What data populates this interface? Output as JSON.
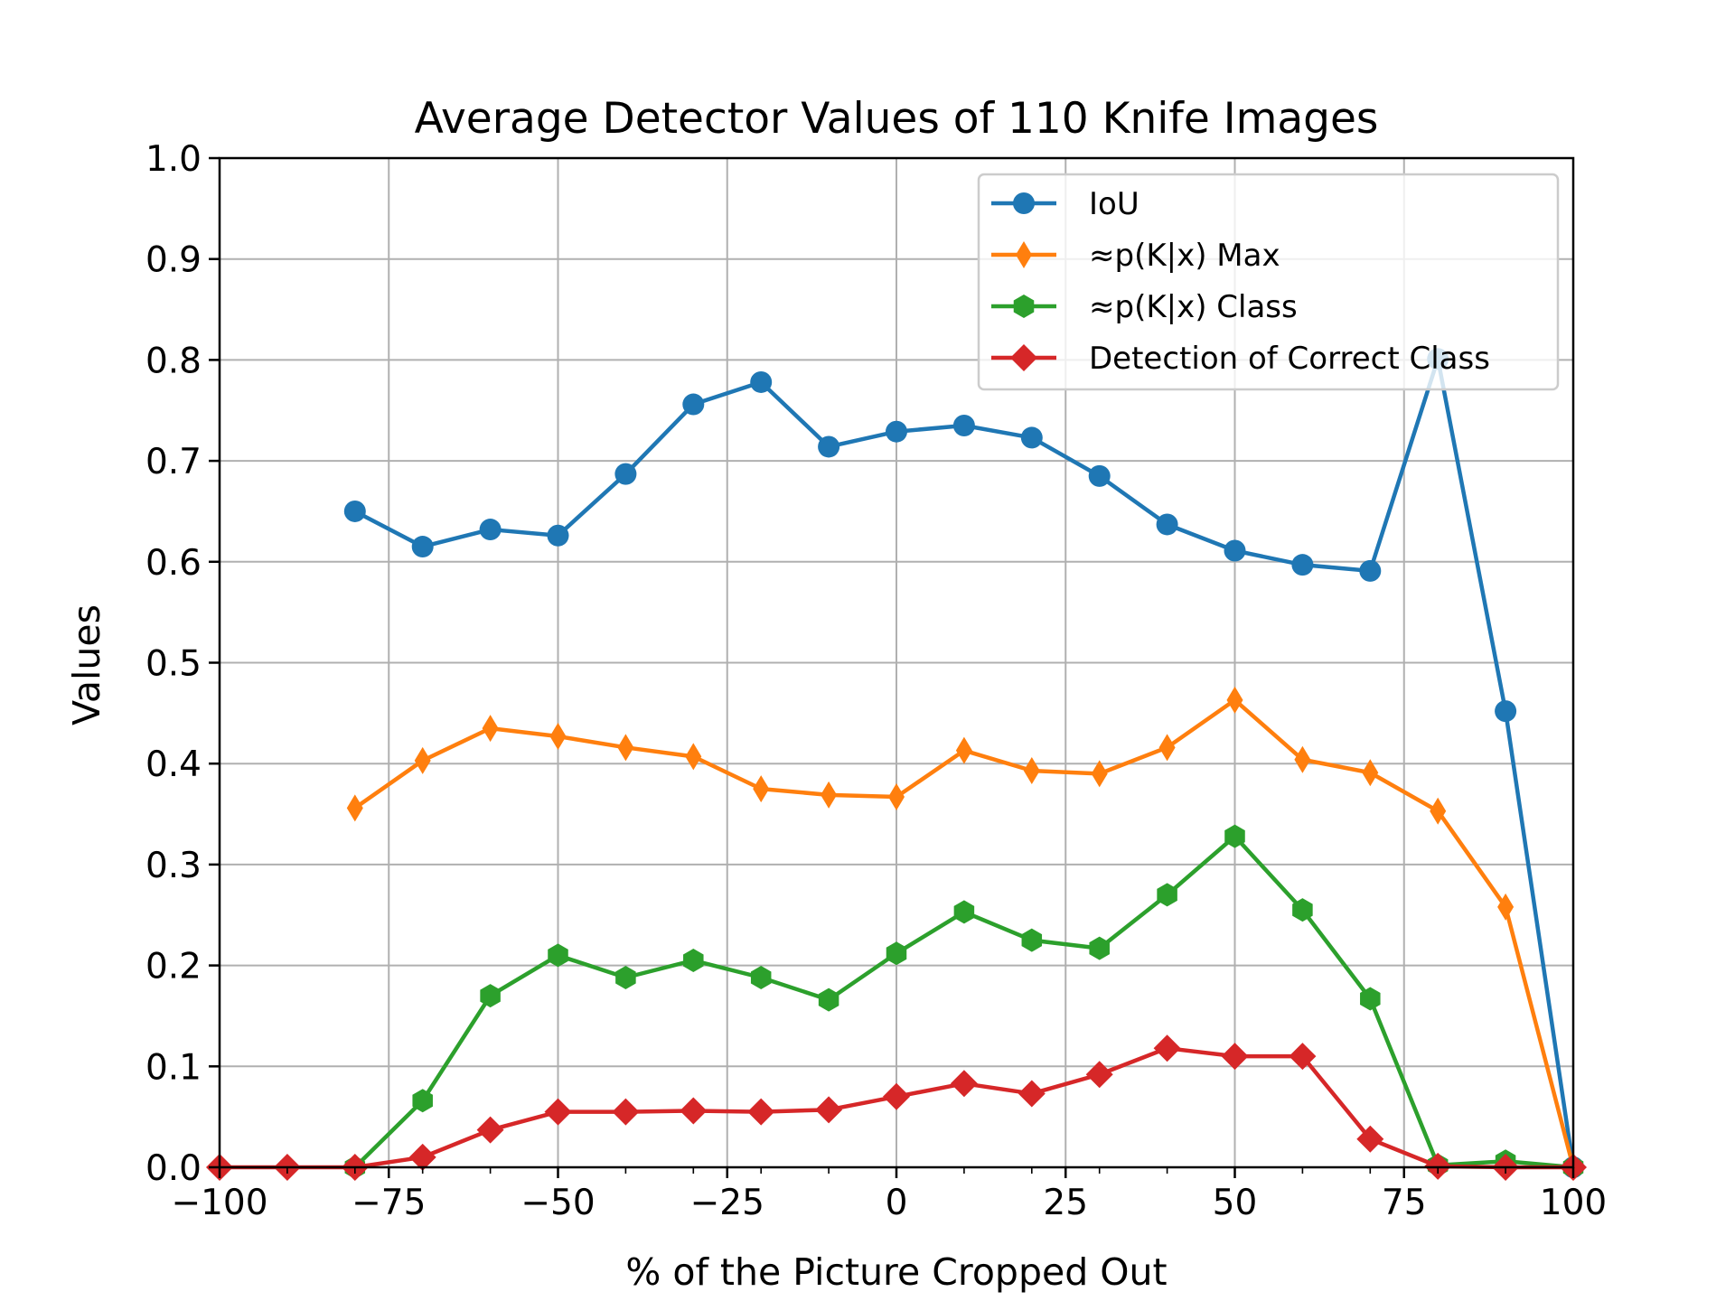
{
  "chart_data": {
    "type": "line",
    "title": "Average Detector Values of 110 Knife Images",
    "xlabel": "% of the Picture Cropped Out",
    "ylabel": "Values",
    "xlim": [
      -100,
      100
    ],
    "ylim": [
      0.0,
      1.0
    ],
    "xticks": [
      -100,
      -75,
      -50,
      -25,
      0,
      25,
      50,
      75,
      100
    ],
    "xtick_labels": [
      "−100",
      "−75",
      "−50",
      "−25",
      "0",
      "25",
      "50",
      "75",
      "100"
    ],
    "xminor_ticks": [
      -90,
      -80,
      -70,
      -60,
      -40,
      -30,
      -20,
      -10,
      10,
      20,
      30,
      40,
      60,
      70,
      80,
      90
    ],
    "yticks": [
      0.0,
      0.1,
      0.2,
      0.3,
      0.4,
      0.5,
      0.6,
      0.7,
      0.8,
      0.9,
      1.0
    ],
    "ytick_labels": [
      "0.0",
      "0.1",
      "0.2",
      "0.3",
      "0.4",
      "0.5",
      "0.6",
      "0.7",
      "0.8",
      "0.9",
      "1.0"
    ],
    "grid": true,
    "legend_position": "top-right",
    "series": [
      {
        "name": "IoU",
        "color": "#1f77b4",
        "marker": "circle",
        "x": [
          -80,
          -70,
          -60,
          -50,
          -40,
          -30,
          -20,
          -10,
          0,
          10,
          20,
          30,
          40,
          50,
          60,
          70,
          80,
          90,
          100
        ],
        "y": [
          0.65,
          0.615,
          0.632,
          0.626,
          0.687,
          0.756,
          0.778,
          0.714,
          0.729,
          0.735,
          0.723,
          0.685,
          0.637,
          0.611,
          0.597,
          0.591,
          0.801,
          0.452,
          0.0
        ]
      },
      {
        "name": "≈p(K|x) Max",
        "color": "#ff7f0e",
        "marker": "thin_diamond",
        "x": [
          -80,
          -70,
          -60,
          -50,
          -40,
          -30,
          -20,
          -10,
          0,
          10,
          20,
          30,
          40,
          50,
          60,
          70,
          80,
          90,
          100
        ],
        "y": [
          0.356,
          0.403,
          0.435,
          0.427,
          0.416,
          0.407,
          0.375,
          0.369,
          0.367,
          0.413,
          0.393,
          0.39,
          0.416,
          0.463,
          0.404,
          0.391,
          0.353,
          0.258,
          0.0
        ]
      },
      {
        "name": "≈p(K|x) Class",
        "color": "#2ca02c",
        "marker": "hexagon",
        "x": [
          -80,
          -70,
          -60,
          -50,
          -40,
          -30,
          -20,
          -10,
          0,
          10,
          20,
          30,
          40,
          50,
          60,
          70,
          80,
          90,
          100
        ],
        "y": [
          0.0,
          0.066,
          0.17,
          0.21,
          0.188,
          0.205,
          0.188,
          0.166,
          0.212,
          0.253,
          0.225,
          0.217,
          0.27,
          0.328,
          0.255,
          0.167,
          0.002,
          0.006,
          0.0
        ]
      },
      {
        "name": "Detection of Correct Class",
        "color": "#d62728",
        "marker": "diamond",
        "x": [
          -100,
          -90,
          -80,
          -70,
          -60,
          -50,
          -40,
          -30,
          -20,
          -10,
          0,
          10,
          20,
          30,
          40,
          50,
          60,
          70,
          80,
          90,
          100
        ],
        "y": [
          0.0,
          0.0,
          0.0,
          0.01,
          0.037,
          0.055,
          0.055,
          0.056,
          0.055,
          0.057,
          0.07,
          0.083,
          0.073,
          0.092,
          0.118,
          0.11,
          0.11,
          0.028,
          0.001,
          0.0,
          0.0
        ]
      }
    ]
  }
}
